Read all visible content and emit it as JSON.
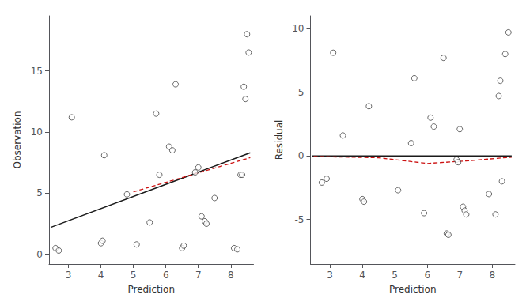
{
  "chart_data": [
    {
      "type": "scatter",
      "xlabel": "Prediction",
      "ylabel": "Observation",
      "xlim": [
        2.4,
        8.7
      ],
      "xticks": [
        3,
        4,
        5,
        6,
        7,
        8
      ],
      "ylim": [
        -0.8,
        19.5
      ],
      "yticks": [
        0,
        5,
        10,
        15
      ],
      "grid": false,
      "series": [
        {
          "type": "scatter",
          "marker": "circle",
          "color": "#444444",
          "x": [
            2.6,
            2.7,
            3.1,
            4.0,
            4.05,
            4.1,
            4.8,
            5.1,
            5.5,
            5.7,
            5.8,
            6.1,
            6.2,
            6.3,
            6.5,
            6.55,
            6.9,
            7.0,
            7.1,
            7.2,
            7.25,
            7.5,
            8.1,
            8.2,
            8.3,
            8.35,
            8.4,
            8.45,
            8.5,
            8.55
          ],
          "values": [
            0.5,
            0.3,
            11.2,
            0.9,
            1.1,
            8.1,
            4.9,
            0.8,
            2.6,
            11.5,
            6.5,
            8.8,
            8.5,
            13.9,
            0.5,
            0.7,
            6.7,
            7.1,
            3.1,
            2.7,
            2.5,
            4.6,
            0.5,
            0.4,
            6.5,
            6.5,
            13.7,
            12.7,
            18.0,
            16.5
          ]
        },
        {
          "type": "line",
          "line_style": "solid",
          "color": "#1a1a1a",
          "x": [
            2.45,
            8.6
          ],
          "values": [
            2.2,
            8.3
          ]
        },
        {
          "type": "line",
          "line_style": "dashed",
          "color": "#cc1111",
          "x": [
            5.0,
            8.6
          ],
          "values": [
            5.1,
            7.9
          ]
        }
      ]
    },
    {
      "type": "scatter",
      "xlabel": "Prediction",
      "ylabel": "Residual",
      "xlim": [
        2.4,
        8.7
      ],
      "xticks": [
        3,
        4,
        5,
        6,
        7,
        8
      ],
      "ylim": [
        -8.5,
        11.0
      ],
      "yticks": [
        -5,
        0,
        5,
        10
      ],
      "grid": false,
      "series": [
        {
          "type": "scatter",
          "marker": "circle",
          "color": "#444444",
          "x": [
            2.75,
            2.9,
            3.1,
            3.4,
            4.0,
            4.05,
            4.2,
            5.1,
            5.5,
            5.6,
            5.9,
            6.1,
            6.2,
            6.5,
            6.6,
            6.65,
            6.9,
            6.95,
            7.0,
            7.1,
            7.15,
            7.2,
            7.9,
            8.1,
            8.2,
            8.25,
            8.3,
            8.4,
            8.5
          ],
          "values": [
            -2.1,
            -1.8,
            8.1,
            1.6,
            -3.4,
            -3.6,
            3.9,
            -2.7,
            1.0,
            6.1,
            -4.5,
            3.0,
            2.3,
            7.7,
            -6.1,
            -6.2,
            -0.3,
            -0.5,
            2.1,
            -4.0,
            -4.3,
            -4.6,
            -3.0,
            -4.6,
            4.7,
            5.9,
            -2.0,
            8.0,
            9.7
          ]
        },
        {
          "type": "line",
          "line_style": "solid",
          "color": "#1a1a1a",
          "x": [
            2.45,
            8.6
          ],
          "values": [
            0.0,
            0.0
          ]
        },
        {
          "type": "line",
          "line_style": "dashed",
          "color": "#cc1111",
          "x": [
            2.5,
            4.5,
            6.0,
            7.2,
            8.6
          ],
          "values": [
            -0.05,
            -0.15,
            -0.6,
            -0.4,
            -0.1
          ]
        }
      ]
    }
  ]
}
